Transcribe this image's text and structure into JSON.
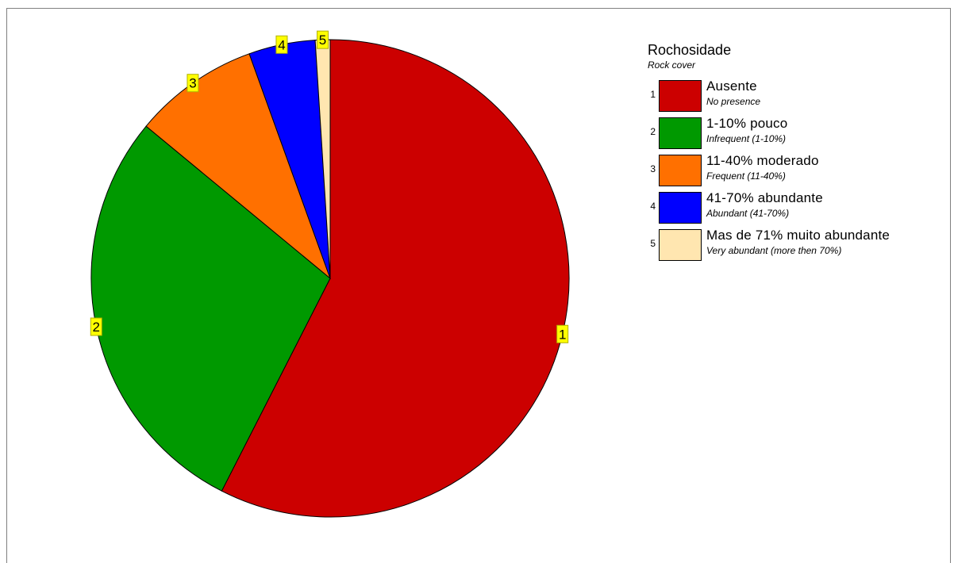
{
  "chart_data": {
    "type": "pie",
    "title": "Rochosidade",
    "subtitle": "Rock cover",
    "start_angle_deg": 0,
    "direction": "clockwise",
    "legend_position": "right",
    "slices": [
      {
        "id": "1",
        "label": "Ausente",
        "sublabel": "No presence",
        "value": 57.5,
        "color": "#cc0000"
      },
      {
        "id": "2",
        "label": "1-10% pouco",
        "sublabel": "Infrequent (1-10%)",
        "value": 28.5,
        "color": "#009900"
      },
      {
        "id": "3",
        "label": "11-40% moderado",
        "sublabel": "Frequent (11-40%)",
        "value": 8.5,
        "color": "#ff7000"
      },
      {
        "id": "4",
        "label": "41-70% abundante",
        "sublabel": "Abundant (41-70%)",
        "value": 4.5,
        "color": "#0000ff"
      },
      {
        "id": "5",
        "label": "Mas de 71% muito abundante",
        "sublabel": "Very abundant (more then 70%)",
        "value": 1.0,
        "color": "#ffe6b0"
      }
    ]
  }
}
